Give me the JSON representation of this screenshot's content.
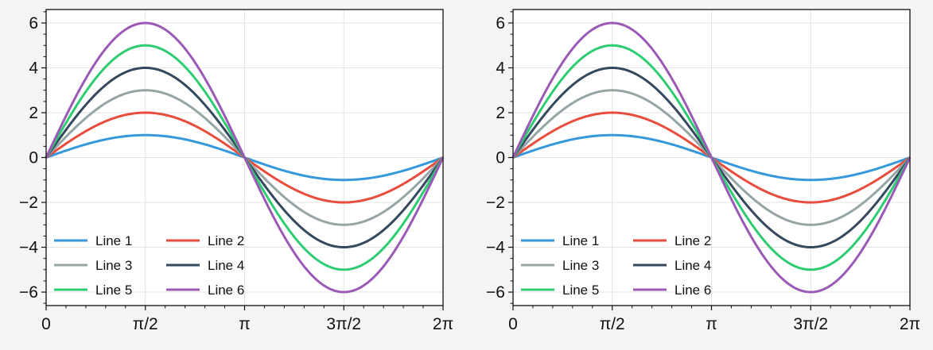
{
  "chart_data": [
    {
      "type": "line",
      "title": "",
      "xlabel": "",
      "ylabel": "",
      "xlim": [
        0,
        6.283185307
      ],
      "ylim": [
        -6.6,
        6.6
      ],
      "grid": true,
      "function": "y = k * sin(x)",
      "x_ticks": [
        0,
        1.570796327,
        3.141592654,
        4.71238898,
        6.283185307
      ],
      "x_tick_labels": [
        "0",
        "π/2",
        "π",
        "3π/2",
        "2π"
      ],
      "y_ticks": [
        6,
        4,
        2,
        0,
        -2,
        -4,
        -6
      ],
      "y_tick_labels": [
        "6",
        "4",
        "2",
        "0",
        "−2",
        "−4",
        "−6"
      ],
      "legend": {
        "position": "lower-left",
        "columns": 2
      },
      "series": [
        {
          "name": "Line 1",
          "amplitude": 1,
          "color": "#3498db"
        },
        {
          "name": "Line 2",
          "amplitude": 2,
          "color": "#e74c3c"
        },
        {
          "name": "Line 3",
          "amplitude": 3,
          "color": "#95a5a6"
        },
        {
          "name": "Line 4",
          "amplitude": 4,
          "color": "#34495e"
        },
        {
          "name": "Line 5",
          "amplitude": 5,
          "color": "#2ecc71"
        },
        {
          "name": "Line 6",
          "amplitude": 6,
          "color": "#9b59b6"
        }
      ]
    },
    {
      "type": "line",
      "title": "",
      "xlabel": "",
      "ylabel": "",
      "xlim": [
        0,
        6.283185307
      ],
      "ylim": [
        -6.6,
        6.6
      ],
      "grid": true,
      "function": "y = k * sin(x)",
      "x_ticks": [
        0,
        1.570796327,
        3.141592654,
        4.71238898,
        6.283185307
      ],
      "x_tick_labels": [
        "0",
        "π/2",
        "π",
        "3π/2",
        "2π"
      ],
      "y_ticks": [
        6,
        4,
        2,
        0,
        -2,
        -4,
        -6
      ],
      "y_tick_labels": [
        "6",
        "4",
        "2",
        "0",
        "−2",
        "−4",
        "−6"
      ],
      "legend": {
        "position": "lower-left",
        "columns": 2
      },
      "series": [
        {
          "name": "Line 1",
          "amplitude": 1,
          "color": "#3498db"
        },
        {
          "name": "Line 2",
          "amplitude": 2,
          "color": "#e74c3c"
        },
        {
          "name": "Line 3",
          "amplitude": 3,
          "color": "#95a5a6"
        },
        {
          "name": "Line 4",
          "amplitude": 4,
          "color": "#34495e"
        },
        {
          "name": "Line 5",
          "amplitude": 5,
          "color": "#2ecc71"
        },
        {
          "name": "Line 6",
          "amplitude": 6,
          "color": "#9b59b6"
        }
      ]
    }
  ],
  "colors": {
    "figure_background": "#f4f4f4",
    "axes_background": "#ffffff",
    "grid": "#e3e3e3",
    "spine": "#111111"
  }
}
